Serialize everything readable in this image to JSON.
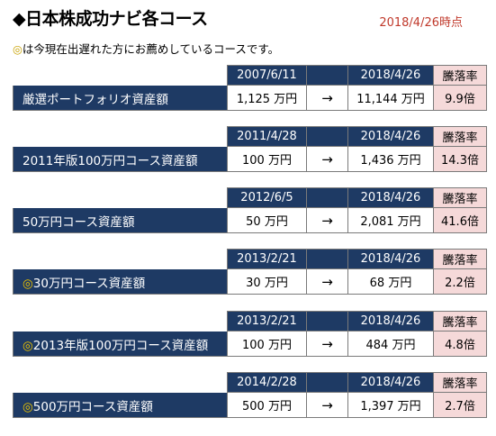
{
  "header": {
    "title": "◆日本株成功ナビ各コース",
    "date": "2018/4/26時点"
  },
  "note": {
    "mark": "◎",
    "text": "は今現在出遅れた方にお薦めしているコースです。"
  },
  "labels": {
    "arrow": "→",
    "rate_header": "騰落率"
  },
  "courses": [
    {
      "mark": "",
      "name": "厳選ポートフォリオ資産額",
      "start_date": "2007/6/11",
      "end_date": "2018/4/26",
      "start_value": "1,125 万円",
      "end_value": "11,144 万円",
      "rate": "9.9倍"
    },
    {
      "mark": "",
      "name": "2011年版100万円コース資産額",
      "start_date": "2011/4/28",
      "end_date": "2018/4/26",
      "start_value": "100 万円",
      "end_value": "1,436 万円",
      "rate": "14.3倍"
    },
    {
      "mark": "",
      "name": "50万円コース資産額",
      "start_date": "2012/6/5",
      "end_date": "2018/4/26",
      "start_value": "50 万円",
      "end_value": "2,081 万円",
      "rate": "41.6倍"
    },
    {
      "mark": "◎",
      "name": "30万円コース資産額",
      "start_date": "2013/2/21",
      "end_date": "2018/4/26",
      "start_value": "30 万円",
      "end_value": "68 万円",
      "rate": "2.2倍"
    },
    {
      "mark": "◎",
      "name": "2013年版100万円コース資産額",
      "start_date": "2013/2/21",
      "end_date": "2018/4/26",
      "start_value": "100 万円",
      "end_value": "484 万円",
      "rate": "4.8倍"
    },
    {
      "mark": "◎",
      "name": "500万円コース資産額",
      "start_date": "2014/2/28",
      "end_date": "2018/4/26",
      "start_value": "500 万円",
      "end_value": "1,397 万円",
      "rate": "2.7倍"
    }
  ]
}
